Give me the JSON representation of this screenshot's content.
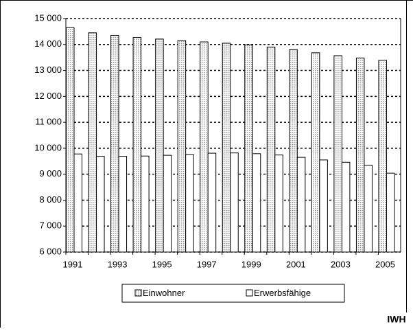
{
  "chart_data": {
    "type": "bar",
    "categories": [
      "1991",
      null,
      "1993",
      null,
      "1995",
      null,
      "1997",
      null,
      "1999",
      null,
      "2001",
      null,
      "2003",
      null,
      "2005"
    ],
    "series": [
      {
        "name": "Einwohner",
        "color": "#9a9a9a",
        "pattern": "dots",
        "values": [
          14650,
          14450,
          14350,
          14270,
          14210,
          14150,
          14100,
          14050,
          13990,
          13900,
          13800,
          13680,
          13570,
          13480,
          13390
        ]
      },
      {
        "name": "Erwerbsfähige",
        "color": "#ffffff",
        "values": [
          9780,
          9690,
          9690,
          9700,
          9730,
          9760,
          9810,
          9820,
          9790,
          9740,
          9650,
          9550,
          9460,
          9350,
          9040
        ]
      }
    ],
    "ylim": [
      6000,
      15000
    ],
    "yticks": [
      {
        "value": 6000,
        "label": "6 000"
      },
      {
        "value": 7000,
        "label": "7 000"
      },
      {
        "value": 8000,
        "label": "8 000"
      },
      {
        "value": 9000,
        "label": "9 000"
      },
      {
        "value": 10000,
        "label": "10 000"
      },
      {
        "value": 11000,
        "label": "11 000"
      },
      {
        "value": 12000,
        "label": "12 000"
      },
      {
        "value": 13000,
        "label": "13 000"
      },
      {
        "value": 14000,
        "label": "14 000"
      },
      {
        "value": 15000,
        "label": "15 000"
      }
    ],
    "grid": true,
    "legend": "bottom",
    "source": "IWH"
  }
}
